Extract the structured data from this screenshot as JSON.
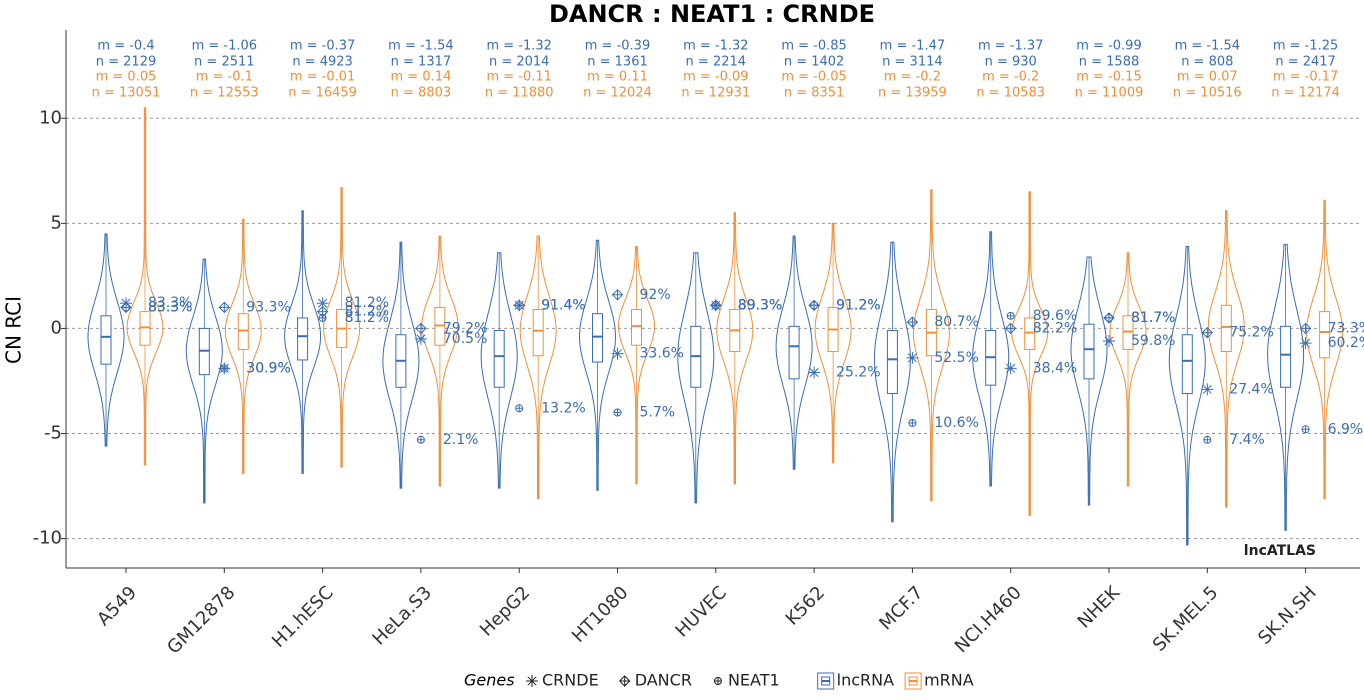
{
  "chart_data": {
    "type": "violin",
    "title": "DANCR : NEAT1 : CRNDE",
    "y_label": "CN RCI",
    "watermark": "lncATLAS",
    "legend_title": "Genes",
    "categories": [
      "A549",
      "GM12878",
      "H1.hESC",
      "HeLa.S3",
      "HepG2",
      "HT1080",
      "HUVEC",
      "K562",
      "MCF.7",
      "NCI.H460",
      "NHEK",
      "SK.MEL.5",
      "SK.N.SH"
    ],
    "ylim": [
      -11.4,
      14.2
    ],
    "yticks": [
      -10,
      -5,
      0,
      5,
      10
    ],
    "grid": true,
    "series": [
      {
        "name": "lncRNA",
        "color": "#3a6db3",
        "m": [
          -0.4,
          -1.06,
          -0.37,
          -1.54,
          -1.32,
          -0.39,
          -1.32,
          -0.85,
          -1.47,
          -1.37,
          -0.99,
          -1.54,
          -1.25
        ],
        "m_labels": [
          "m = -0.4",
          "m = -1.06",
          "m = -0.37",
          "m = -1.54",
          "m = -1.32",
          "m = -0.39",
          "m = -1.32",
          "m = -0.85",
          "m = -1.47",
          "m = -1.37",
          "m = -0.99",
          "m = -1.54",
          "m = -1.25"
        ],
        "n": [
          2129,
          2511,
          4923,
          1317,
          2014,
          1361,
          2214,
          1402,
          3114,
          930,
          1588,
          808,
          2417
        ],
        "n_labels": [
          "n = 2129",
          "n = 2511",
          "n = 4923",
          "n = 1317",
          "n = 2014",
          "n = 1361",
          "n = 2214",
          "n = 1402",
          "n = 3114",
          "n = 930",
          "n = 1588",
          "n = 808",
          "n = 2417"
        ],
        "q1": [
          -1.7,
          -2.2,
          -1.5,
          -2.8,
          -2.8,
          -1.6,
          -2.8,
          -2.4,
          -3.1,
          -2.7,
          -2.4,
          -3.1,
          -2.8
        ],
        "q3": [
          0.6,
          0,
          0.5,
          -0.3,
          -0.1,
          0.7,
          0.1,
          0.1,
          -0.1,
          -0.1,
          0.2,
          -0.3,
          0.1
        ],
        "min": [
          -5.6,
          -8.3,
          -6.9,
          -7.6,
          -7.6,
          -7.7,
          -8.3,
          -6.7,
          -9.2,
          -7.5,
          -8.4,
          -10.3,
          -9.6
        ],
        "max": [
          4.5,
          3.3,
          5.6,
          4.1,
          3.6,
          4.2,
          3.6,
          4.4,
          4.1,
          4.6,
          3.4,
          3.9,
          4.0
        ]
      },
      {
        "name": "mRNA",
        "color": "#f0903a",
        "m": [
          0.05,
          -0.1,
          -0.01,
          0.14,
          -0.11,
          0.11,
          -0.09,
          -0.05,
          -0.2,
          -0.2,
          -0.15,
          0.07,
          -0.17
        ],
        "m_labels": [
          "m = 0.05",
          "m = -0.1",
          "m = -0.01",
          "m = 0.14",
          "m = -0.11",
          "m = 0.11",
          "m = -0.09",
          "m = -0.05",
          "m = -0.2",
          "m = -0.2",
          "m = -0.15",
          "m = 0.07",
          "m = -0.17"
        ],
        "n": [
          13051,
          12553,
          16459,
          8803,
          11880,
          12024,
          12931,
          8351,
          13959,
          10583,
          11009,
          10516,
          12174
        ],
        "n_labels": [
          "n = 13051",
          "n = 12553",
          "n = 16459",
          "n = 8803",
          "n = 11880",
          "n = 12024",
          "n = 12931",
          "n = 8351",
          "n = 13959",
          "n = 10583",
          "n = 11009",
          "n = 10516",
          "n = 12174"
        ],
        "q1": [
          -0.8,
          -1.0,
          -0.9,
          -0.8,
          -1.3,
          -0.8,
          -1.1,
          -1.1,
          -1.3,
          -1.0,
          -1.0,
          -1.1,
          -1.4
        ],
        "q3": [
          0.8,
          0.7,
          0.9,
          1.0,
          0.9,
          0.9,
          0.9,
          1.0,
          0.9,
          0.5,
          0.6,
          1.1,
          0.8
        ],
        "min": [
          -6.5,
          -6.9,
          -6.6,
          -7.5,
          -8.1,
          -7.4,
          -7.4,
          -6.4,
          -8.2,
          -8.9,
          -7.5,
          -8.5,
          -8.1
        ],
        "max": [
          10.5,
          5.2,
          6.7,
          4.4,
          4.4,
          3.9,
          5.5,
          5.0,
          6.6,
          6.5,
          3.6,
          5.6,
          6.1
        ]
      }
    ],
    "genes": [
      {
        "name": "CRNDE",
        "values": [
          1.2,
          -1.9,
          1.2,
          -0.5,
          1.1,
          -1.2,
          1.1,
          -2.1,
          -1.4,
          -1.9,
          -0.6,
          -2.9,
          -0.7
        ],
        "labels": [
          "83.3%",
          "30.9%",
          "81.2%",
          "70.5%",
          "91.4%",
          "33.6%",
          "89.3%",
          "25.2%",
          "52.5%",
          "38.4%",
          "59.8%",
          "27.4%",
          "60.2%"
        ]
      },
      {
        "name": "DANCR",
        "values": [
          1.0,
          1.0,
          0.8,
          0.0,
          1.1,
          1.6,
          1.1,
          1.1,
          0.3,
          0.0,
          0.5,
          -0.2,
          0.0
        ],
        "labels": [
          "83.3%",
          "93.3%",
          "81.2%",
          "79.2%",
          "91.4%",
          "92%",
          "89.3%",
          "91.2%",
          "80.7%",
          "82.2%",
          "81.7%",
          "75.2%",
          "73.3%"
        ]
      },
      {
        "name": "NEAT1",
        "values": [
          1.0,
          -1.9,
          0.5,
          -5.3,
          -3.8,
          -4.0,
          1.1,
          1.1,
          -4.5,
          0.6,
          0.5,
          -5.3,
          -4.8
        ],
        "labels": [
          "83.3%",
          "30.9%",
          "81.2%",
          "2.1%",
          "13.2%",
          "5.7%",
          "89.3%",
          "91.2%",
          "10.6%",
          "89.6%",
          "81.7%",
          "7.4%",
          "6.9%"
        ]
      }
    ]
  }
}
